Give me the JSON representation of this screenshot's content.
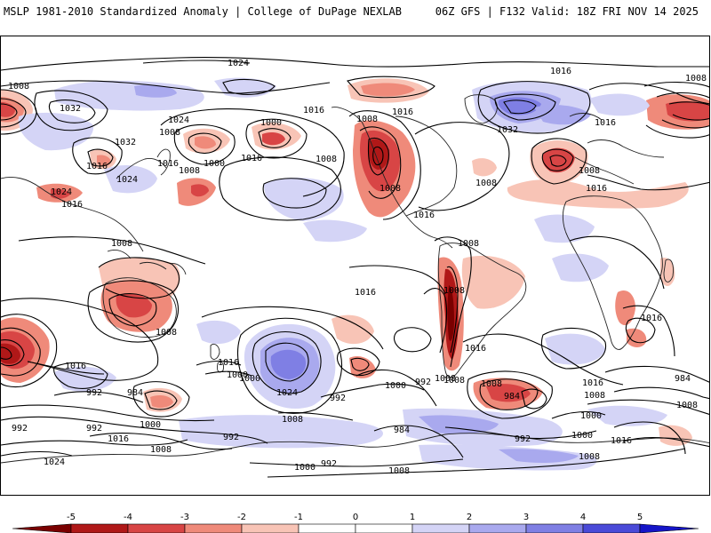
{
  "header": {
    "title": "MSLP 1981-2010 Standardized Anomaly | College of DuPage NEXLAB",
    "run_info": "06Z GFS | F132 Valid: 18Z FRI NOV 14 2025"
  },
  "colors": {
    "neg5": "#7a0000",
    "neg4": "#b01818",
    "neg3": "#d84545",
    "neg2": "#ef8a7a",
    "neg1": "#f8c4b6",
    "neutral": "#ffffff",
    "pos1": "#d4d4f6",
    "pos2": "#a9a9ee",
    "pos3": "#7f7fe4",
    "pos4": "#4a4ad8",
    "pos5": "#1515c8",
    "isobar": "#000000",
    "coast": "#222222"
  },
  "colorbar": {
    "labels": [
      "-5",
      "-4",
      "-3",
      "-2",
      "-1",
      "0",
      "1",
      "2",
      "3",
      "4",
      "5"
    ]
  },
  "isobar_labels": [
    "1024",
    "1008",
    "1016",
    "1008",
    "1032",
    "1024",
    "1000",
    "1016",
    "1032",
    "1008",
    "1016",
    "1016",
    "1000",
    "1008",
    "1024",
    "1016",
    "1008",
    "1016",
    "1008",
    "1024",
    "1016",
    "1032",
    "1016",
    "1008",
    "1016",
    "1008",
    "1008",
    "1016",
    "1008",
    "1016",
    "1016",
    "1008",
    "1008",
    "1008",
    "1016",
    "1016",
    "1000",
    "1024",
    "992",
    "1000",
    "992",
    "1008",
    "984",
    "992",
    "1008",
    "1008",
    "1000",
    "1016",
    "1008",
    "1016",
    "1000",
    "992",
    "984",
    "1008",
    "992",
    "992",
    "984",
    "992",
    "1000",
    "1008",
    "1024",
    "1000",
    "992",
    "1008",
    "984",
    "1000",
    "1008",
    "1008",
    "1016",
    "1016"
  ]
}
